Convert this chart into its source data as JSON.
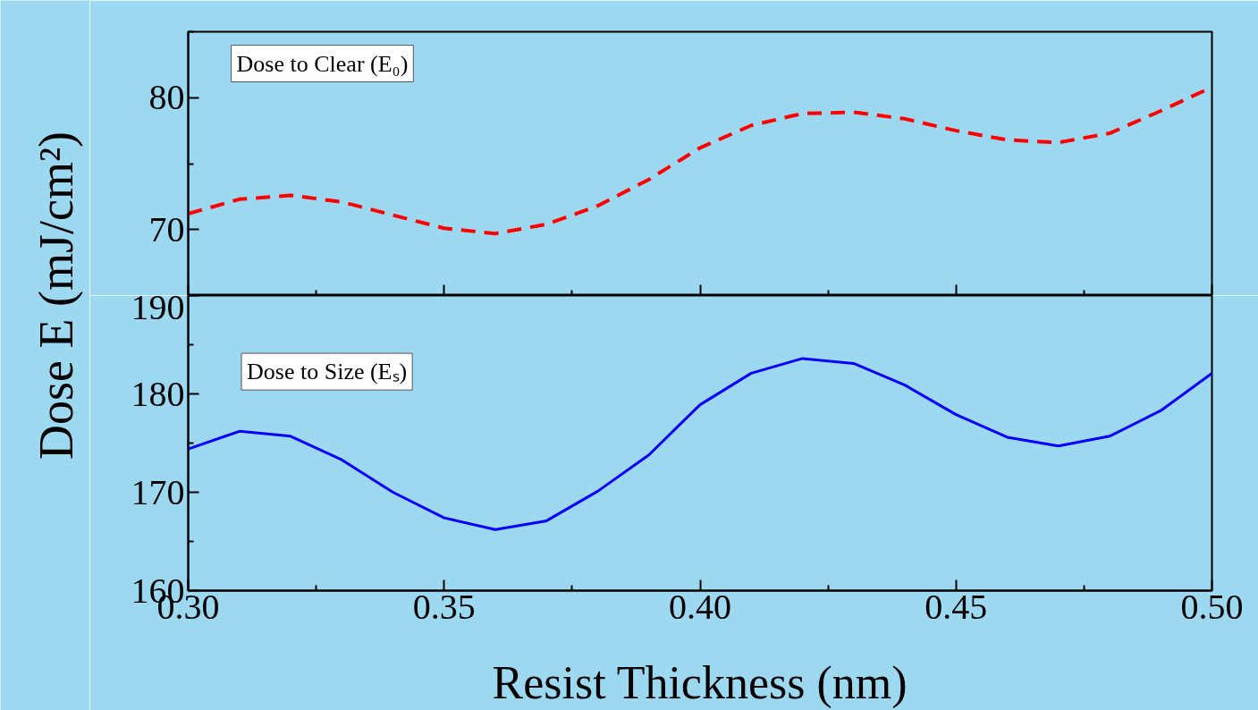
{
  "chart_data": [
    {
      "type": "line",
      "ylabel": "Dose E (mJ/cm²)",
      "annotations": [
        "Dose to Clear (E₀)"
      ],
      "line_style": "dashed",
      "tick_labels": "y",
      "xlim": [
        0.3,
        0.5
      ],
      "xticks": [
        0.3,
        0.35,
        0.4,
        0.45,
        0.5
      ],
      "ylim": [
        65,
        85
      ],
      "yticks": [
        70,
        80
      ],
      "x": [
        0.3,
        0.31,
        0.32,
        0.33,
        0.34,
        0.35,
        0.36,
        0.37,
        0.38,
        0.39,
        0.4,
        0.41,
        0.42,
        0.43,
        0.44,
        0.45,
        0.46,
        0.47,
        0.48,
        0.49,
        0.5
      ],
      "series": [
        {
          "color": "#ff0000",
          "values": [
            71.2,
            72.3,
            72.6,
            72.1,
            71.1,
            70.1,
            69.7,
            70.4,
            71.8,
            73.8,
            76.2,
            77.9,
            78.8,
            78.9,
            78.4,
            77.5,
            76.8,
            76.6,
            77.3,
            79.0,
            80.8
          ]
        }
      ]
    },
    {
      "type": "line",
      "xlabel": "Resist Thickness (nm)",
      "annotations": [
        "Dose to Size (Eₛ)"
      ],
      "line_style": "solid",
      "xlim": [
        0.3,
        0.5
      ],
      "xticks": [
        {
          "value": 0.3,
          "label": "0.30"
        },
        {
          "value": 0.35,
          "label": "0.35"
        },
        {
          "value": 0.4,
          "label": "0.40"
        },
        {
          "value": 0.45,
          "label": "0.45"
        },
        {
          "value": 0.5,
          "label": "0.50"
        }
      ],
      "ylim": [
        160,
        190
      ],
      "yticks": [
        160,
        170,
        180,
        190
      ],
      "x": [
        0.3,
        0.31,
        0.32,
        0.33,
        0.34,
        0.35,
        0.36,
        0.37,
        0.38,
        0.39,
        0.4,
        0.41,
        0.42,
        0.43,
        0.44,
        0.45,
        0.46,
        0.47,
        0.48,
        0.49,
        0.5
      ],
      "series": [
        {
          "color": "#0000ff",
          "values": [
            174.4,
            176.2,
            175.7,
            173.3,
            170.0,
            167.4,
            166.2,
            167.1,
            170.1,
            173.8,
            178.9,
            182.1,
            183.6,
            183.1,
            180.9,
            177.9,
            175.6,
            174.7,
            175.7,
            178.3,
            182.1
          ]
        }
      ]
    }
  ]
}
